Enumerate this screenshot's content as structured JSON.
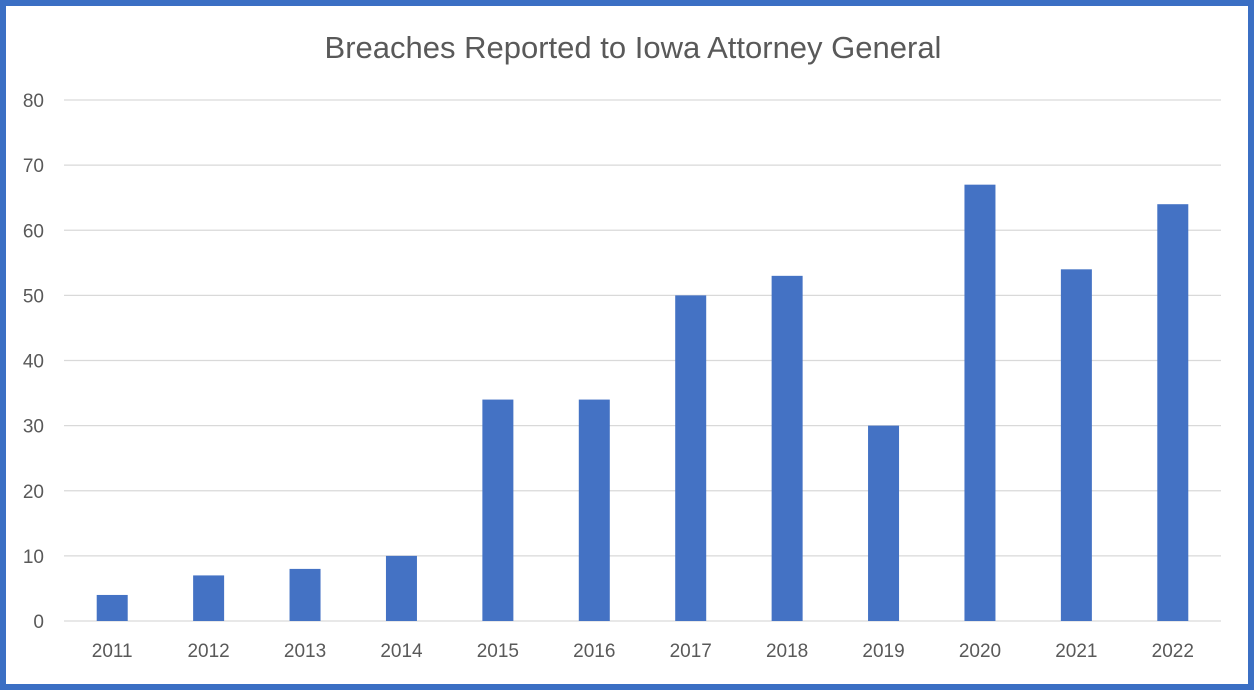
{
  "chart_data": {
    "type": "bar",
    "title": "Breaches Reported to Iowa Attorney General",
    "xlabel": "",
    "ylabel": "",
    "categories": [
      "2011",
      "2012",
      "2013",
      "2014",
      "2015",
      "2016",
      "2017",
      "2018",
      "2019",
      "2020",
      "2021",
      "2022"
    ],
    "values": [
      4,
      7,
      8,
      10,
      34,
      34,
      50,
      53,
      30,
      67,
      54,
      64
    ],
    "ylim": [
      0,
      80
    ],
    "yticks": [
      "0",
      "10",
      "20",
      "30",
      "40",
      "50",
      "60",
      "70",
      "80"
    ],
    "grid": true,
    "legend": "none",
    "bar_color": "#4472c4",
    "grid_color": "#d9d9d9",
    "frame_color": "#3b6fc4"
  }
}
